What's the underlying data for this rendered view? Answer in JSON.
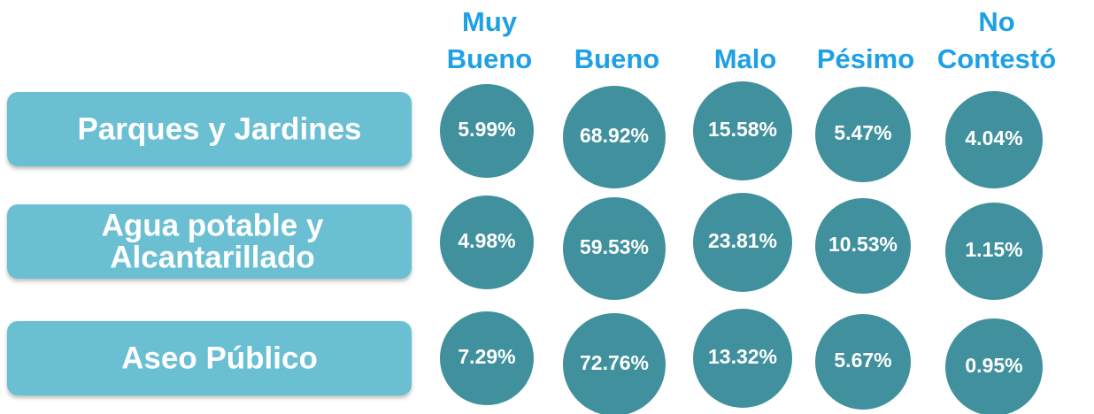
{
  "columns": [
    [
      "Muy",
      "Bueno"
    ],
    [
      "Bueno"
    ],
    [
      "Malo"
    ],
    [
      "Pésimo"
    ],
    [
      "No",
      "Contestó"
    ]
  ],
  "rows": [
    {
      "label": [
        "Parques y Jardines"
      ],
      "cells": [
        "5.99%",
        "68.92%",
        "15.58%",
        "5.47%",
        "4.04%"
      ]
    },
    {
      "label": [
        "Agua potable y",
        "Alcantarillado"
      ],
      "cells": [
        "4.98%",
        "59.53%",
        "23.81%",
        "10.53%",
        "1.15%"
      ]
    },
    {
      "label": [
        "Aseo Público"
      ],
      "cells": [
        "7.29%",
        "72.76%",
        "13.32%",
        "5.67%",
        "0.95%"
      ]
    }
  ]
}
